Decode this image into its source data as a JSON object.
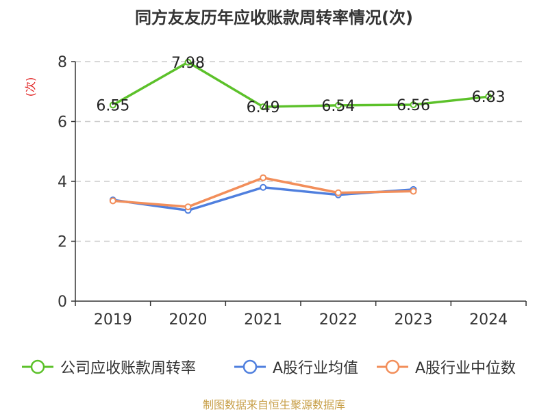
{
  "chart_data": {
    "type": "line",
    "title": "同方友友历年应收账款周转率情况(次)",
    "ylabel": "(次)",
    "xlabel": "",
    "categories": [
      "2019",
      "2020",
      "2021",
      "2022",
      "2023",
      "2024"
    ],
    "ylim": [
      0,
      8
    ],
    "yticks": [
      "0",
      "2",
      "4",
      "6",
      "8"
    ],
    "grid": true,
    "legend_position": "bottom",
    "series": [
      {
        "name": "公司应收账款周转率",
        "color": "#5cc12a",
        "values": [
          6.55,
          7.98,
          6.49,
          6.54,
          6.56,
          6.83
        ],
        "labels": [
          "6.55",
          "7.98",
          "6.49",
          "6.54",
          "6.56",
          "6.83"
        ]
      },
      {
        "name": "A股行业均值",
        "color": "#4f7fde",
        "values": [
          3.38,
          3.03,
          3.8,
          3.55,
          3.73,
          null
        ]
      },
      {
        "name": "A股行业中位数",
        "color": "#f28e5a",
        "values": [
          3.35,
          3.15,
          4.12,
          3.62,
          3.67,
          null
        ]
      }
    ]
  },
  "footer": {
    "source": "制图数据来自恒生聚源数据库"
  }
}
